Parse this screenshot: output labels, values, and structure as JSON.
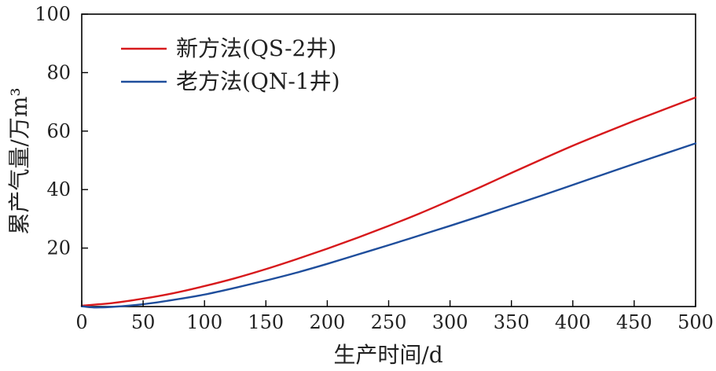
{
  "chart_data": {
    "type": "line",
    "xlabel": "生产时间/d",
    "ylabel": "累产气量/万m³",
    "xlim": [
      0,
      500
    ],
    "ylim": [
      0,
      100
    ],
    "xticks": [
      0,
      50,
      100,
      150,
      200,
      250,
      300,
      350,
      400,
      450,
      500
    ],
    "yticks": [
      20,
      40,
      60,
      80,
      100
    ],
    "grid": false,
    "legend_position": "top-left",
    "series": [
      {
        "name": "新方法(QS-2井)",
        "color": "#d7191c",
        "x": [
          0,
          25,
          50,
          75,
          100,
          125,
          150,
          175,
          200,
          225,
          250,
          275,
          300,
          325,
          350,
          375,
          400,
          425,
          450,
          475,
          500
        ],
        "y": [
          0.3,
          1.2,
          2.7,
          4.6,
          7.0,
          9.7,
          12.8,
          16.2,
          19.8,
          23.6,
          27.6,
          31.8,
          36.3,
          40.9,
          45.7,
          50.4,
          55.0,
          59.3,
          63.5,
          67.5,
          71.5
        ]
      },
      {
        "name": "老方法(QN-1井)",
        "color": "#1f4e9c",
        "x": [
          0,
          10,
          25,
          50,
          75,
          100,
          125,
          150,
          175,
          200,
          225,
          250,
          275,
          300,
          325,
          350,
          375,
          400,
          425,
          450,
          475,
          500
        ],
        "y": [
          0.1,
          -0.3,
          -0.1,
          0.8,
          2.3,
          4.1,
          6.4,
          8.9,
          11.6,
          14.6,
          17.8,
          21.0,
          24.3,
          27.6,
          31.0,
          34.5,
          38.0,
          41.6,
          45.2,
          48.8,
          52.3,
          55.8
        ]
      }
    ]
  }
}
